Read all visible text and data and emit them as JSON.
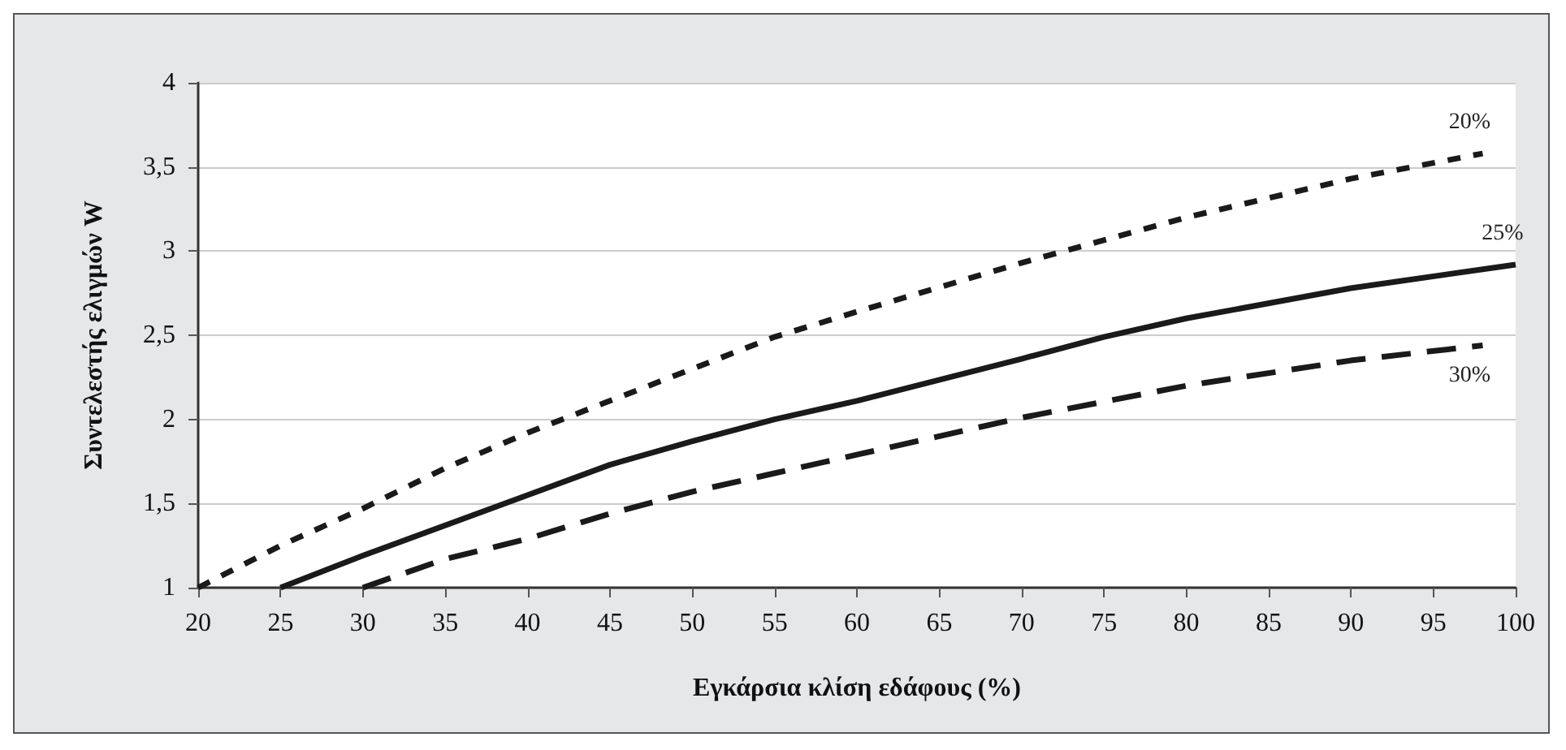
{
  "chart_data": {
    "type": "line",
    "xlabel": "Εγκάρσια κλίση εδάφους (%)",
    "ylabel": "Συντελεστής ελιγμών W",
    "xlim": [
      20,
      100
    ],
    "xticks": [
      20,
      25,
      30,
      35,
      40,
      45,
      50,
      55,
      60,
      65,
      70,
      75,
      80,
      85,
      90,
      95,
      100
    ],
    "ylim": [
      1,
      4
    ],
    "yticks": [
      {
        "value": 1,
        "label": "1"
      },
      {
        "value": 1.5,
        "label": "1,5"
      },
      {
        "value": 2,
        "label": "2"
      },
      {
        "value": 2.5,
        "label": "2,5"
      },
      {
        "value": 3,
        "label": "3"
      },
      {
        "value": 3.5,
        "label": "3,5"
      },
      {
        "value": 4,
        "label": "4"
      }
    ],
    "grid": "y",
    "legend": false,
    "marker": "none",
    "series": [
      {
        "name": "20%",
        "color": "#1a1a1a",
        "line_style": "dotted",
        "x": [
          20,
          25,
          30,
          35,
          40,
          45,
          50,
          55,
          60,
          70,
          80,
          90,
          98
        ],
        "values": [
          1,
          1.25,
          1.47,
          1.71,
          1.92,
          2.11,
          2.3,
          2.49,
          2.64,
          2.93,
          3.2,
          3.43,
          3.58
        ]
      },
      {
        "name": "25%",
        "color": "#1a1a1a",
        "line_style": "solid",
        "x": [
          25,
          30,
          40,
          45,
          50,
          55,
          60,
          70,
          75,
          80,
          90,
          100
        ],
        "values": [
          1,
          1.19,
          1.55,
          1.73,
          1.87,
          2.0,
          2.11,
          2.36,
          2.49,
          2.6,
          2.78,
          2.92
        ]
      },
      {
        "name": "30%",
        "color": "#1a1a1a",
        "line_style": "dashed",
        "x": [
          30,
          35,
          40,
          45,
          50,
          55,
          60,
          70,
          80,
          90,
          98
        ],
        "values": [
          1,
          1.17,
          1.29,
          1.44,
          1.57,
          1.68,
          1.79,
          2.01,
          2.2,
          2.35,
          2.44
        ]
      }
    ]
  }
}
